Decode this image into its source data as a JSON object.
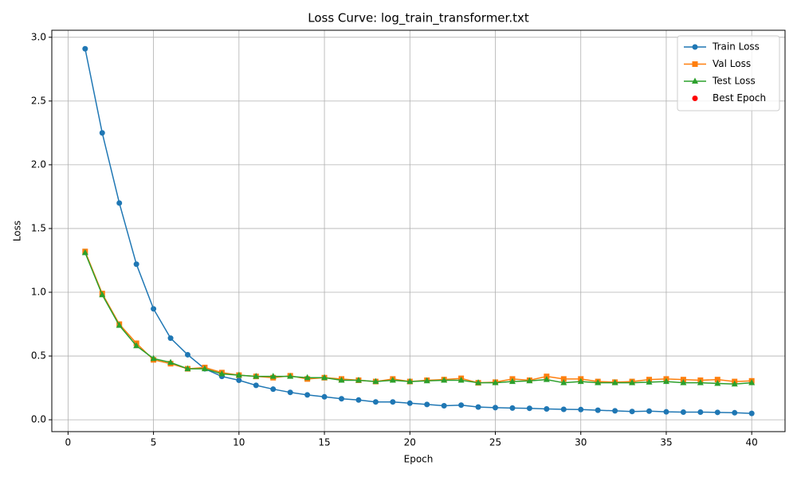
{
  "chart_data": {
    "type": "line",
    "title": "Loss Curve: log_train_transformer.txt",
    "xlabel": "Epoch",
    "ylabel": "Loss",
    "x": [
      1,
      2,
      3,
      4,
      5,
      6,
      7,
      8,
      9,
      10,
      11,
      12,
      13,
      14,
      15,
      16,
      17,
      18,
      19,
      20,
      21,
      22,
      23,
      24,
      25,
      26,
      27,
      28,
      29,
      30,
      31,
      32,
      33,
      34,
      35,
      36,
      37,
      38,
      39,
      40
    ],
    "series": [
      {
        "name": "Train Loss",
        "color": "#1f77b4",
        "marker": "circle",
        "values": [
          2.91,
          2.25,
          1.7,
          1.22,
          0.87,
          0.64,
          0.51,
          0.4,
          0.34,
          0.31,
          0.27,
          0.24,
          0.215,
          0.195,
          0.18,
          0.165,
          0.155,
          0.14,
          0.14,
          0.13,
          0.12,
          0.11,
          0.115,
          0.1,
          0.095,
          0.092,
          0.09,
          0.085,
          0.082,
          0.08,
          0.075,
          0.07,
          0.065,
          0.068,
          0.062,
          0.06,
          0.06,
          0.058,
          0.055,
          0.05
        ]
      },
      {
        "name": "Val Loss",
        "color": "#ff7f0e",
        "marker": "square",
        "values": [
          1.32,
          0.99,
          0.75,
          0.6,
          0.47,
          0.44,
          0.4,
          0.41,
          0.37,
          0.35,
          0.34,
          0.33,
          0.345,
          0.32,
          0.33,
          0.32,
          0.31,
          0.3,
          0.32,
          0.3,
          0.31,
          0.315,
          0.325,
          0.29,
          0.295,
          0.32,
          0.31,
          0.34,
          0.32,
          0.32,
          0.3,
          0.295,
          0.3,
          0.315,
          0.32,
          0.315,
          0.31,
          0.315,
          0.3,
          0.305
        ]
      },
      {
        "name": "Test Loss",
        "color": "#2ca02c",
        "marker": "triangle",
        "values": [
          1.31,
          0.98,
          0.74,
          0.58,
          0.48,
          0.45,
          0.4,
          0.4,
          0.36,
          0.35,
          0.34,
          0.34,
          0.34,
          0.33,
          0.33,
          0.31,
          0.31,
          0.3,
          0.31,
          0.3,
          0.305,
          0.31,
          0.31,
          0.29,
          0.29,
          0.3,
          0.305,
          0.315,
          0.29,
          0.3,
          0.29,
          0.29,
          0.29,
          0.295,
          0.3,
          0.29,
          0.29,
          0.285,
          0.28,
          0.29
        ]
      },
      {
        "name": "Best Epoch",
        "color": "red",
        "marker": "dot",
        "x": [],
        "values": []
      }
    ],
    "xlim": [
      -0.95,
      41.95
    ],
    "xticks": [
      0,
      5,
      10,
      15,
      20,
      25,
      30,
      35,
      40
    ],
    "ylim": [
      -0.093,
      3.055
    ],
    "yticks": [
      {
        "value": 0,
        "label": "0.0"
      },
      {
        "value": 0.5,
        "label": "0.5"
      },
      {
        "value": 1,
        "label": "1.0"
      },
      {
        "value": 1.5,
        "label": "1.5"
      },
      {
        "value": 2,
        "label": "2.0"
      },
      {
        "value": 2.5,
        "label": "2.5"
      },
      {
        "value": 3,
        "label": "3.0"
      }
    ],
    "grid": true,
    "legend": "upper right"
  }
}
